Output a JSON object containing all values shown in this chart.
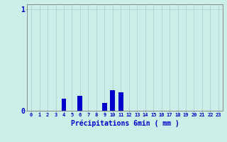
{
  "hours": [
    0,
    1,
    2,
    3,
    4,
    5,
    6,
    7,
    8,
    9,
    10,
    11,
    12,
    13,
    14,
    15,
    16,
    17,
    18,
    19,
    20,
    21,
    22,
    23
  ],
  "values": [
    0,
    0,
    0,
    0,
    0.12,
    0,
    0.15,
    0,
    0,
    0.08,
    0.2,
    0.18,
    0,
    0,
    0,
    0,
    0,
    0,
    0,
    0,
    0,
    0,
    0,
    0
  ],
  "bar_color": "#0000cc",
  "bg_color": "#cceee8",
  "grid_color": "#aacccc",
  "axis_color": "#888888",
  "text_color": "#0000cc",
  "xlabel": "Précipitations 6min ( mm )",
  "ylim": [
    0,
    1.05
  ],
  "xlim": [
    -0.5,
    23.5
  ],
  "tick_labels": [
    "0",
    "1",
    "2",
    "3",
    "4",
    "5",
    "6",
    "7",
    "8",
    "9",
    "10",
    "11",
    "12",
    "13",
    "14",
    "15",
    "16",
    "17",
    "18",
    "19",
    "20",
    "21",
    "22",
    "23"
  ],
  "bar_width": 0.6
}
